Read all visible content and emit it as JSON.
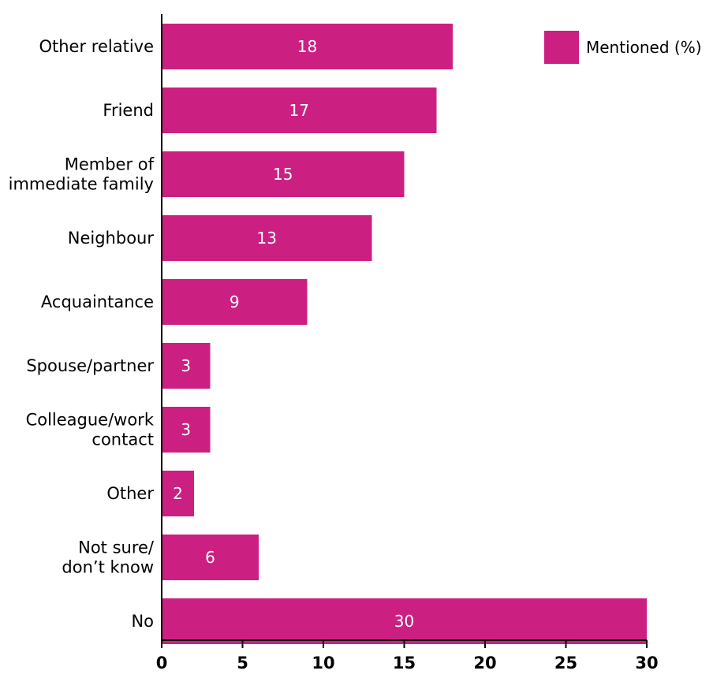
{
  "chart_data": {
    "type": "bar",
    "orientation": "horizontal",
    "categories": [
      [
        "Other relative"
      ],
      [
        "Friend"
      ],
      [
        "Member of",
        "immediate family"
      ],
      [
        "Neighbour"
      ],
      [
        "Acquaintance"
      ],
      [
        "Spouse/partner"
      ],
      [
        "Colleague/work",
        "contact"
      ],
      [
        "Other"
      ],
      [
        "Not sure/",
        "don’t know"
      ],
      [
        "No"
      ]
    ],
    "series": [
      {
        "name": "Mentioned (%)",
        "values": [
          18,
          17,
          15,
          13,
          9,
          3,
          3,
          2,
          6,
          30
        ],
        "color": "#cc1f82"
      }
    ],
    "xlim": [
      0,
      30
    ],
    "xticks": [
      0,
      5,
      10,
      15,
      20,
      25,
      30
    ],
    "grid": false,
    "legend_position": "top-right",
    "data_labels": true
  }
}
